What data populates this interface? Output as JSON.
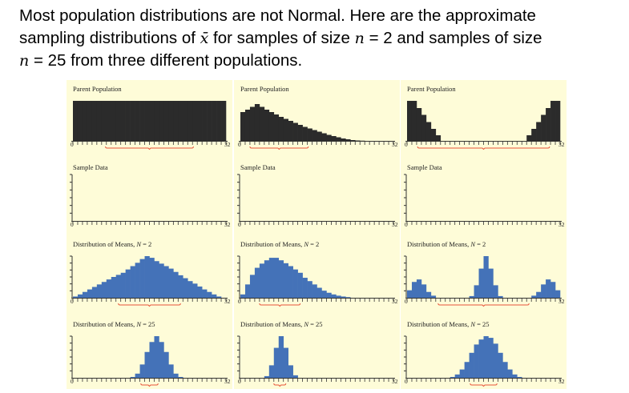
{
  "heading": {
    "line1": "Most population distributions are not Normal. Here are the approximate",
    "line2_a": "sampling distributions of ",
    "xbar": "x̄",
    "line2_b": " for samples of size ",
    "n1": "n",
    "line2_c": " = 2 and samples of size",
    "n2": "n",
    "line3": " = 25 from three different populations."
  },
  "colors": {
    "panel_bg": "#fefcd8",
    "parent_bar": "#2b2b2b",
    "means_bar": "#4472b8",
    "bracket": "#e8553a",
    "axis": "#333333"
  },
  "chart_data": [
    {
      "type": "bar",
      "population": "uniform",
      "x_range": [
        0,
        32
      ],
      "tick_labels": [
        "0",
        "32"
      ],
      "rows": [
        {
          "title_prefix": "Parent Population",
          "title_var": "",
          "title_suffix": "",
          "kind": "parent",
          "y_axis": false,
          "values": [
            1,
            1,
            1,
            1,
            1,
            1,
            1,
            1,
            1,
            1,
            1,
            1,
            1,
            1,
            1,
            1,
            1,
            1,
            1,
            1,
            1,
            1,
            1,
            1,
            1,
            1,
            1,
            1,
            1,
            1,
            1,
            1
          ],
          "bracket": [
            6.8,
            25.2
          ]
        },
        {
          "title_prefix": "Sample Data",
          "title_var": "",
          "title_suffix": "",
          "kind": "sample",
          "y_axis": true,
          "values": [],
          "bracket": null
        },
        {
          "title_prefix": "Distribution of Means, ",
          "title_var": "N",
          "title_suffix": " = 2",
          "kind": "means",
          "y_axis": true,
          "values": [
            0.03,
            0.08,
            0.14,
            0.2,
            0.26,
            0.32,
            0.38,
            0.44,
            0.5,
            0.55,
            0.6,
            0.68,
            0.76,
            0.84,
            0.93,
            1,
            0.96,
            0.88,
            0.82,
            0.76,
            0.7,
            0.62,
            0.54,
            0.47,
            0.4,
            0.34,
            0.27,
            0.2,
            0.14,
            0.08,
            0.03,
            0
          ],
          "bracket": [
            9.5,
            22.5
          ]
        },
        {
          "title_prefix": "Distribution of Means, ",
          "title_var": "N",
          "title_suffix": " = 25",
          "kind": "means",
          "y_axis": true,
          "values": [
            0,
            0,
            0,
            0,
            0,
            0,
            0,
            0,
            0,
            0,
            0,
            0,
            0.02,
            0.1,
            0.32,
            0.62,
            0.86,
            1,
            0.86,
            0.62,
            0.32,
            0.1,
            0.02,
            0,
            0,
            0,
            0,
            0,
            0,
            0,
            0,
            0
          ],
          "bracket": [
            14.2,
            17.8
          ]
        }
      ]
    },
    {
      "type": "bar",
      "population": "right-skewed",
      "x_range": [
        0,
        32
      ],
      "tick_labels": [
        "0",
        "32"
      ],
      "rows": [
        {
          "title_prefix": "Parent Population",
          "title_var": "",
          "title_suffix": "",
          "kind": "parent",
          "y_axis": false,
          "values": [
            0.72,
            0.78,
            0.85,
            0.92,
            0.85,
            0.78,
            0.72,
            0.66,
            0.6,
            0.55,
            0.5,
            0.45,
            0.4,
            0.35,
            0.31,
            0.27,
            0.23,
            0.19,
            0.15,
            0.12,
            0.09,
            0.06,
            0.04,
            0.02,
            0.01,
            0.005,
            0,
            0,
            0,
            0,
            0,
            0
          ],
          "bracket": [
            2,
            14.2
          ]
        },
        {
          "title_prefix": "Sample Data",
          "title_var": "",
          "title_suffix": "",
          "kind": "sample",
          "y_axis": true,
          "values": [],
          "bracket": null
        },
        {
          "title_prefix": "Distribution of Means, ",
          "title_var": "N",
          "title_suffix": " = 2",
          "kind": "means",
          "y_axis": true,
          "values": [
            0.08,
            0.32,
            0.55,
            0.72,
            0.82,
            0.9,
            0.96,
            0.96,
            0.9,
            0.83,
            0.76,
            0.68,
            0.6,
            0.48,
            0.4,
            0.32,
            0.24,
            0.17,
            0.12,
            0.08,
            0.05,
            0.03,
            0.015,
            0,
            0,
            0,
            0,
            0,
            0,
            0,
            0,
            0
          ],
          "bracket": [
            4,
            12.5
          ]
        },
        {
          "title_prefix": "Distribution of Means, ",
          "title_var": "N",
          "title_suffix": " = 25",
          "kind": "means",
          "y_axis": true,
          "values": [
            0,
            0,
            0,
            0,
            0,
            0.04,
            0.3,
            0.72,
            1,
            0.72,
            0.3,
            0.06,
            0,
            0,
            0,
            0,
            0,
            0,
            0,
            0,
            0,
            0,
            0,
            0,
            0,
            0,
            0,
            0,
            0,
            0,
            0,
            0
          ],
          "bracket": [
            7,
            9.5
          ]
        }
      ]
    },
    {
      "type": "bar",
      "population": "bimodal U-shaped",
      "x_range": [
        0,
        32
      ],
      "tick_labels": [
        "0",
        "32"
      ],
      "rows": [
        {
          "title_prefix": "Parent Population",
          "title_var": "",
          "title_suffix": "",
          "kind": "parent",
          "y_axis": false,
          "values": [
            1,
            1,
            0.82,
            0.65,
            0.47,
            0.3,
            0.14,
            0,
            0,
            0,
            0,
            0,
            0,
            0,
            0,
            0,
            0,
            0,
            0,
            0,
            0,
            0,
            0,
            0,
            0,
            0.14,
            0.3,
            0.47,
            0.65,
            0.82,
            1,
            1
          ],
          "bracket": [
            2.2,
            29.8
          ]
        },
        {
          "title_prefix": "Sample Data",
          "title_var": "",
          "title_suffix": "",
          "kind": "sample",
          "y_axis": true,
          "values": [],
          "bracket": null
        },
        {
          "title_prefix": "Distribution of Means, ",
          "title_var": "N",
          "title_suffix": " = 2",
          "kind": "means",
          "y_axis": true,
          "values": [
            0.18,
            0.38,
            0.44,
            0.32,
            0.14,
            0.05,
            0,
            0,
            0,
            0,
            0,
            0,
            0,
            0.04,
            0.3,
            0.7,
            1,
            0.7,
            0.3,
            0.04,
            0,
            0,
            0,
            0,
            0,
            0,
            0.05,
            0.14,
            0.32,
            0.44,
            0.38,
            0.18
          ],
          "bracket": [
            6.5,
            25.5
          ]
        },
        {
          "title_prefix": "Distribution of Means, ",
          "title_var": "N",
          "title_suffix": " = 25",
          "kind": "means",
          "y_axis": true,
          "values": [
            0,
            0,
            0,
            0,
            0,
            0,
            0,
            0,
            0,
            0.02,
            0.08,
            0.2,
            0.38,
            0.6,
            0.8,
            0.92,
            1,
            0.96,
            0.82,
            0.6,
            0.38,
            0.2,
            0.08,
            0.02,
            0,
            0,
            0,
            0,
            0,
            0,
            0,
            0
          ],
          "bracket": [
            13.2,
            18.8
          ]
        }
      ]
    }
  ]
}
